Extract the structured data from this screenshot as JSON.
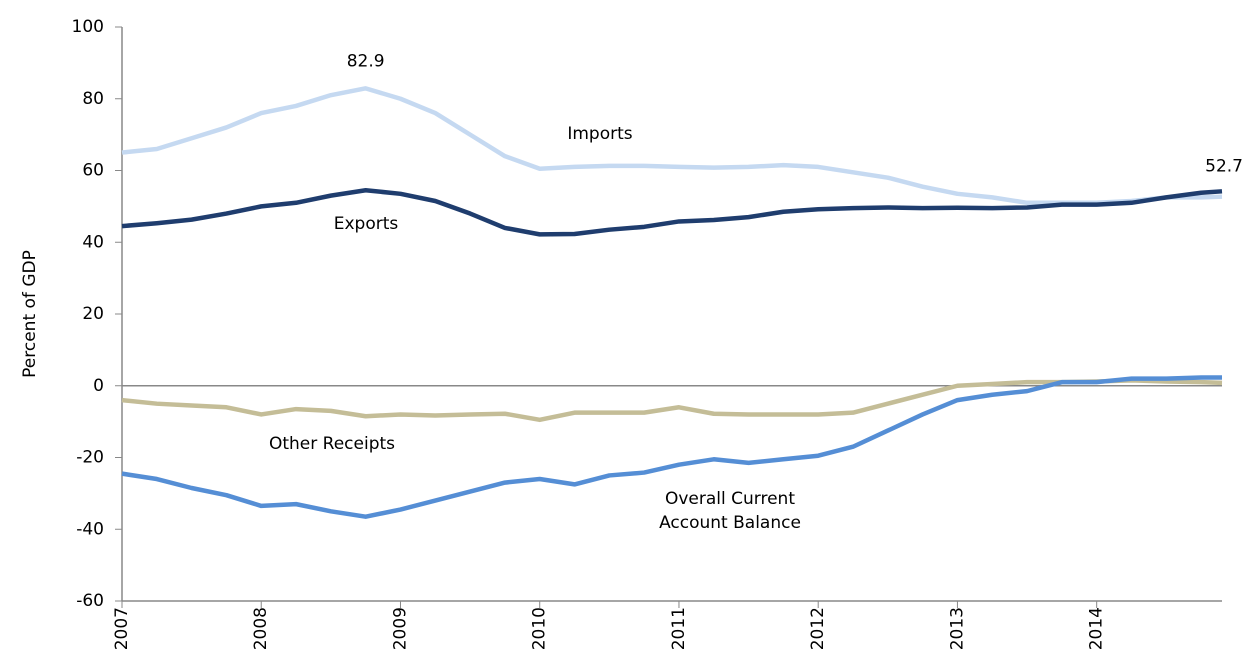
{
  "chart_data": {
    "type": "line",
    "y_label": "Percent of GDP",
    "x": [
      2007,
      2007.25,
      2007.5,
      2007.75,
      2008,
      2008.25,
      2008.5,
      2008.75,
      2009,
      2009.25,
      2009.5,
      2009.75,
      2010,
      2010.25,
      2010.5,
      2010.75,
      2011,
      2011.25,
      2011.5,
      2011.75,
      2012,
      2012.25,
      2012.5,
      2012.75,
      2013,
      2013.25,
      2013.5,
      2013.75,
      2014,
      2014.25,
      2014.5,
      2014.75,
      2014.9
    ],
    "series": [
      {
        "name": "Imports",
        "color": "#c5d9f1",
        "values": [
          65,
          66,
          69,
          72,
          76,
          78,
          81,
          82.9,
          80,
          76,
          70,
          64,
          60.5,
          61,
          61.3,
          61.3,
          61,
          60.8,
          61,
          61.5,
          61,
          59.5,
          58,
          55.5,
          53.5,
          52.5,
          51,
          51,
          51,
          51.5,
          52.5,
          52.5,
          52.7
        ],
        "value_labels": [
          null,
          null,
          null,
          null,
          null,
          null,
          null,
          "82.9",
          null,
          null,
          null,
          null,
          null,
          null,
          null,
          null,
          null,
          null,
          null,
          null,
          null,
          null,
          null,
          null,
          null,
          null,
          null,
          null,
          null,
          null,
          null,
          null,
          "52.7"
        ]
      },
      {
        "name": "Exports",
        "color": "#1f3d6e",
        "values": [
          44.5,
          45.3,
          46.3,
          48,
          50,
          51,
          53,
          54.5,
          53.5,
          51.5,
          48,
          44,
          42.2,
          42.3,
          43.5,
          44.3,
          45.8,
          46.2,
          47,
          48.5,
          49.2,
          49.5,
          49.7,
          49.5,
          49.6,
          49.5,
          49.7,
          50.5,
          50.5,
          51,
          52.5,
          53.8,
          54.2
        ]
      },
      {
        "name": "Other Receipts",
        "color": "#c4bd97",
        "values": [
          -4,
          -5,
          -5.5,
          -6,
          -8,
          -6.5,
          -7,
          -8.5,
          -8,
          -8.3,
          -8,
          -7.8,
          -9.5,
          -7.5,
          -7.5,
          -7.5,
          -6,
          -7.8,
          -8,
          -8,
          -8,
          -7.5,
          -5,
          -2.5,
          0,
          0.5,
          1,
          1,
          1.2,
          1.5,
          1.2,
          1,
          0.8
        ]
      },
      {
        "name": "Overall Current Account Balance",
        "color": "#558ed5",
        "values": [
          -24.5,
          -26,
          -28.5,
          -30.5,
          -33.5,
          -33,
          -35,
          -36.5,
          -34.5,
          -32,
          -29.5,
          -27,
          -26,
          -27.5,
          -25,
          -24.2,
          -22,
          -20.5,
          -21.5,
          -20.5,
          -19.5,
          -17,
          -12.5,
          -8,
          -4,
          -2.5,
          -1.5,
          1,
          1,
          2,
          2,
          2.3,
          2.3
        ]
      }
    ],
    "xlim": [
      2007,
      2014.9
    ],
    "xticks": [
      2007,
      2008,
      2009,
      2010,
      2011,
      2012,
      2013,
      2014
    ],
    "ylim": [
      -60,
      100
    ],
    "yticks": [
      -60,
      -40,
      -20,
      0,
      20,
      40,
      60,
      80,
      100
    ]
  }
}
